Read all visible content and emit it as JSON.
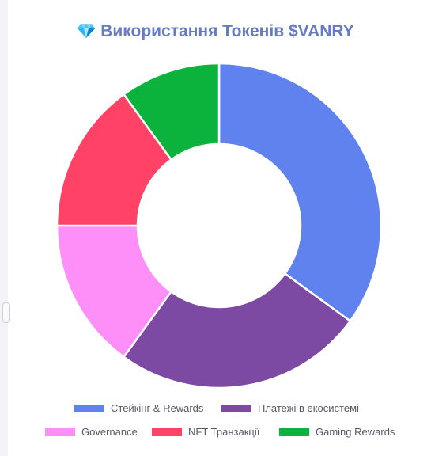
{
  "title": "Використання Токенів $VANRY",
  "title_icon": "gem-icon",
  "chart_data": {
    "type": "pie",
    "subtype": "doughnut",
    "title": "Використання Токенів $VANRY",
    "categories": [
      "Стейкінг & Rewards",
      "Платежі в екосистемі",
      "Governance",
      "NFT Транзакції",
      "Gaming Rewards"
    ],
    "values": [
      35,
      25,
      15,
      15,
      10
    ],
    "colors": [
      "#5f82ee",
      "#7d4aa3",
      "#ff8ff8",
      "#ff4266",
      "#0bb33d"
    ],
    "legend_position": "bottom"
  }
}
